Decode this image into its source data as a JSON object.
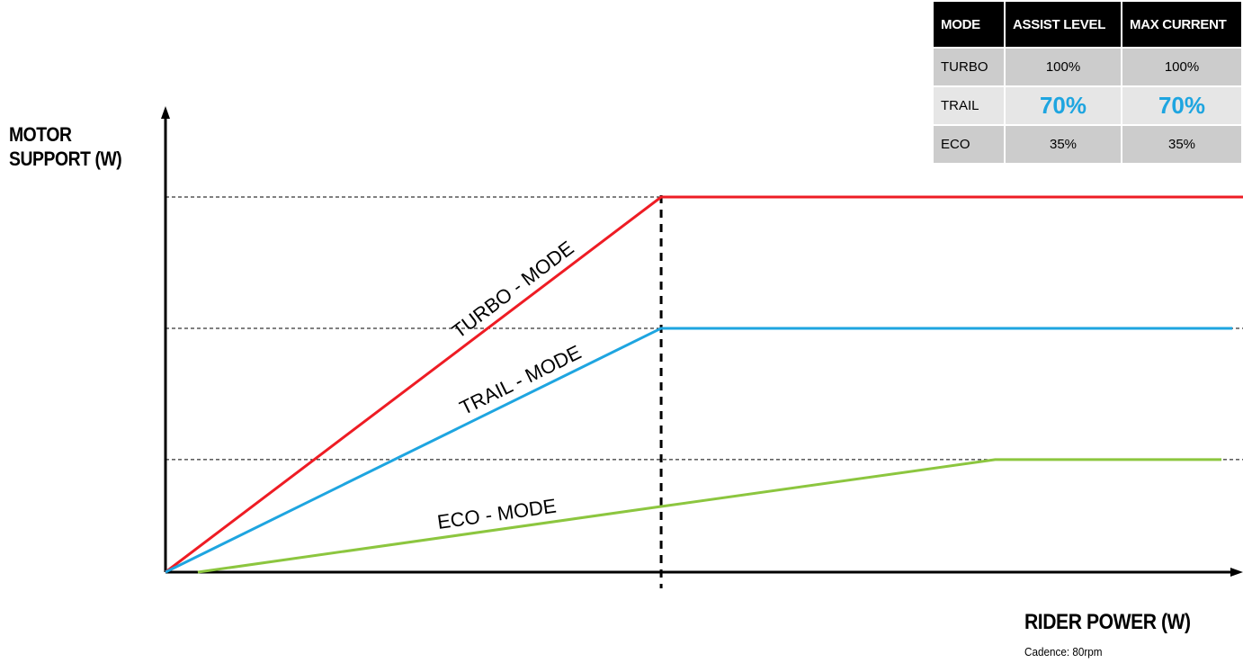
{
  "chart_data": {
    "type": "line",
    "xlabel": "RIDER POWER (W)",
    "ylabel": "MOTOR SUPPORT (W)",
    "note": "Cadence: 80rpm",
    "series": [
      {
        "name": "TURBO - MODE",
        "color": "#ee1c24",
        "points": [
          [
            0,
            0
          ],
          [
            0.46,
            1.0
          ],
          [
            1.0,
            1.0
          ]
        ]
      },
      {
        "name": "TRAIL - MODE",
        "color": "#1ea5e0",
        "points": [
          [
            0,
            0
          ],
          [
            0.46,
            0.65
          ],
          [
            0.99,
            0.65
          ]
        ]
      },
      {
        "name": "ECO - MODE",
        "color": "#8cc63f",
        "points": [
          [
            0.03,
            0
          ],
          [
            0.46,
            0.175
          ],
          [
            0.77,
            0.3
          ],
          [
            0.98,
            0.3
          ]
        ]
      }
    ],
    "reference_levels": [
      1.0,
      0.65,
      0.3
    ],
    "reference_x": 0.46,
    "grid": false
  },
  "table": {
    "headers": [
      "MODE",
      "ASSIST LEVEL",
      "MAX CURRENT"
    ],
    "rows": [
      {
        "mode": "TURBO",
        "assist": "100%",
        "current": "100%"
      },
      {
        "mode": "TRAIL",
        "assist": "70%",
        "current": "70%"
      },
      {
        "mode": "ECO",
        "assist": "35%",
        "current": "35%"
      }
    ],
    "highlight_color": "#1ea5e0"
  }
}
